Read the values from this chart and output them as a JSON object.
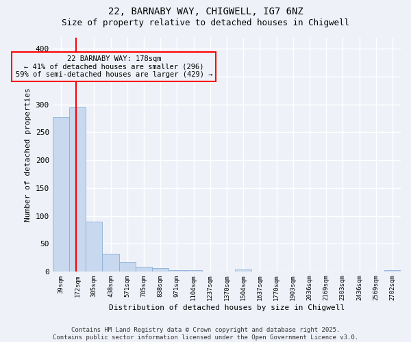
{
  "title": "22, BARNABY WAY, CHIGWELL, IG7 6NZ",
  "subtitle": "Size of property relative to detached houses in Chigwell",
  "xlabel": "Distribution of detached houses by size in Chigwell",
  "ylabel": "Number of detached properties",
  "categories": [
    "39sqm",
    "172sqm",
    "305sqm",
    "438sqm",
    "571sqm",
    "705sqm",
    "838sqm",
    "971sqm",
    "1104sqm",
    "1237sqm",
    "1370sqm",
    "1504sqm",
    "1637sqm",
    "1770sqm",
    "1903sqm",
    "2036sqm",
    "2169sqm",
    "2303sqm",
    "2436sqm",
    "2569sqm",
    "2702sqm"
  ],
  "values": [
    278,
    295,
    90,
    32,
    17,
    8,
    6,
    3,
    3,
    0,
    0,
    4,
    0,
    0,
    0,
    0,
    0,
    0,
    0,
    0,
    2
  ],
  "bar_color": "#c8d8ee",
  "bar_edge_color": "#8ab0d8",
  "bar_width": 1.0,
  "ylim": [
    0,
    420
  ],
  "yticks": [
    0,
    50,
    100,
    150,
    200,
    250,
    300,
    350,
    400
  ],
  "red_line_x": 0.92,
  "annotation_text": "22 BARNABY WAY: 178sqm\n← 41% of detached houses are smaller (296)\n59% of semi-detached houses are larger (429) →",
  "bg_color": "#eef2f8",
  "grid_color": "#ffffff",
  "footer_line1": "Contains HM Land Registry data © Crown copyright and database right 2025.",
  "footer_line2": "Contains public sector information licensed under the Open Government Licence v3.0."
}
